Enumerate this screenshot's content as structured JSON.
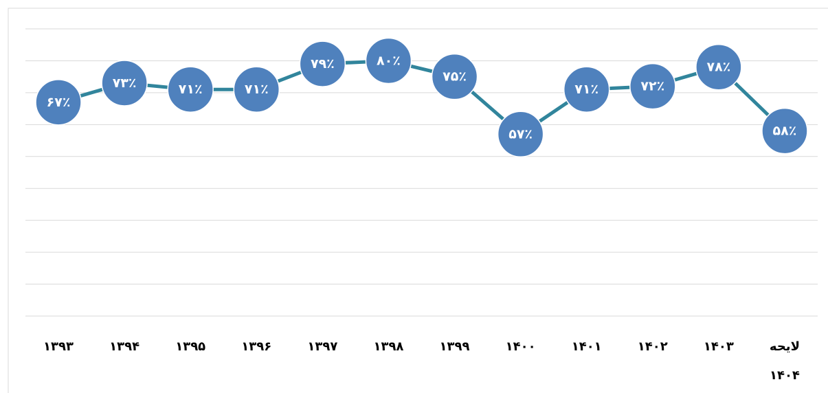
{
  "chart_data": {
    "type": "line",
    "categories": [
      "۱۳۹۳",
      "۱۳۹۴",
      "۱۳۹۵",
      "۱۳۹۶",
      "۱۳۹۷",
      "۱۳۹۸",
      "۱۳۹۹",
      "۱۴۰۰",
      "۱۴۰۱",
      "۱۴۰۲",
      "۱۴۰۳",
      "لایحه ۱۴۰۴"
    ],
    "values": [
      67,
      73,
      71,
      71,
      79,
      80,
      75,
      57,
      71,
      72,
      78,
      58
    ],
    "value_labels": [
      "۶۷٪",
      "۷۳٪",
      "۷۱٪",
      "۷۱٪",
      "۷۹٪",
      "۸۰٪",
      "۷۵٪",
      "۵۷٪",
      "۷۱٪",
      "۷۲٪",
      "۷۸٪",
      "۵۸٪"
    ],
    "color": "#31859c",
    "marker_color": "#4f81bd",
    "ylim": [
      0,
      90
    ],
    "yticks": [
      0,
      10,
      20,
      30,
      40,
      50,
      60,
      70,
      80,
      90
    ],
    "grid": true
  }
}
